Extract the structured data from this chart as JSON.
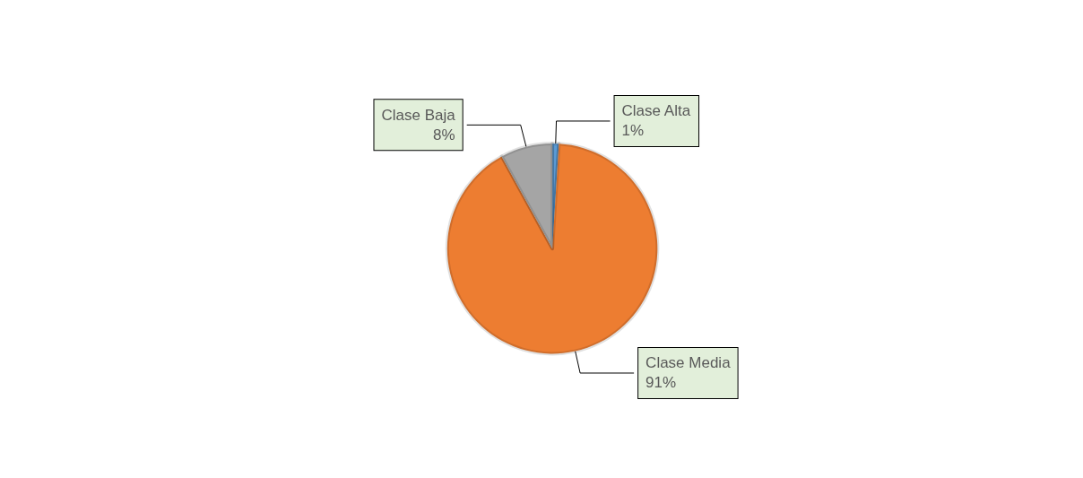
{
  "chart_data": {
    "type": "pie",
    "categories": [
      "Clase Alta",
      "Clase Media",
      "Clase Baja"
    ],
    "values": [
      1,
      91,
      8
    ],
    "value_labels": [
      "1%",
      "91%",
      "8%"
    ],
    "colors": [
      "#5b9bd5",
      "#ed7d31",
      "#a5a5a5"
    ],
    "legend": false
  }
}
